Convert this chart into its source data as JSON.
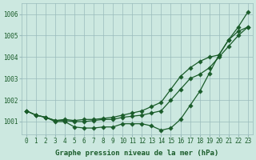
{
  "x": [
    0,
    1,
    2,
    3,
    4,
    5,
    6,
    7,
    8,
    9,
    10,
    11,
    12,
    13,
    14,
    15,
    16,
    17,
    18,
    19,
    20,
    21,
    22,
    23
  ],
  "line_top": [
    1001.5,
    1001.3,
    1001.2,
    1001.05,
    1001.1,
    1001.05,
    1001.1,
    1001.1,
    1001.15,
    1001.2,
    1001.3,
    1001.4,
    1001.5,
    1001.7,
    1001.9,
    1002.5,
    1003.1,
    1003.5,
    1003.8,
    1004.0,
    1004.1,
    1004.8,
    1005.2,
    1005.4
  ],
  "line_mid": [
    1001.5,
    1001.3,
    1001.2,
    1001.05,
    1001.05,
    1001.0,
    1001.0,
    1001.05,
    1001.1,
    1001.1,
    1001.2,
    1001.25,
    1001.3,
    1001.4,
    1001.5,
    1002.0,
    1002.5,
    1003.0,
    1003.2,
    1003.5,
    1004.0,
    1004.5,
    1005.0,
    1005.4
  ],
  "line_bot": [
    1001.5,
    1001.3,
    1001.2,
    1001.0,
    1001.0,
    1000.75,
    1000.7,
    1000.7,
    1000.75,
    1000.75,
    1000.9,
    1000.9,
    1000.9,
    1000.8,
    1000.6,
    1000.7,
    1001.1,
    1001.75,
    1002.4,
    1003.25,
    1004.1,
    1004.8,
    1005.4,
    1006.1
  ],
  "bg_color": "#cce8e0",
  "grid_color": "#99bbbb",
  "line_color": "#1a5c2a",
  "ylim_min": 1000.4,
  "ylim_max": 1006.5,
  "yticks": [
    1001,
    1002,
    1003,
    1004,
    1005,
    1006
  ],
  "xlabel": "Graphe pression niveau de la mer (hPa)",
  "tick_color": "#1a5c2a",
  "xlabel_color": "#1a5c2a",
  "tick_fontsize": 5.5,
  "xlabel_fontsize": 6.5
}
